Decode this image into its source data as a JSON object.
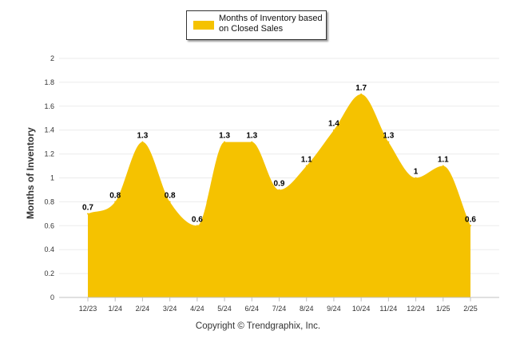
{
  "legend": {
    "label": "Months of Inventory based on Closed Sales"
  },
  "footer": {
    "copyright": "Copyright © Trendgraphix, Inc."
  },
  "chart_data": {
    "type": "area",
    "title": "",
    "xlabel": "",
    "ylabel": "Months of Inventory",
    "categories": [
      "12/23",
      "1/24",
      "2/24",
      "3/24",
      "4/24",
      "5/24",
      "6/24",
      "7/24",
      "8/24",
      "9/24",
      "10/24",
      "11/24",
      "12/24",
      "1/25",
      "2/25"
    ],
    "series": [
      {
        "name": "Months of Inventory based on Closed Sales",
        "values": [
          0.7,
          0.8,
          1.3,
          0.8,
          0.6,
          1.3,
          1.3,
          0.9,
          1.1,
          1.4,
          1.7,
          1.3,
          1.0,
          1.1,
          0.6
        ],
        "data_labels": [
          "0.7",
          "0.8",
          "1.3",
          "0.8",
          "0.6",
          "1.3",
          "1.3",
          "0.9",
          "1.1",
          "1.4",
          "1.7",
          "1.3",
          "1",
          "1.1",
          "0.6"
        ],
        "color": "#f5c200"
      }
    ],
    "y_ticks": [
      "0",
      "0.2",
      "0.4",
      "0.6",
      "0.8",
      "1",
      "1.2",
      "1.4",
      "1.6",
      "1.8",
      "2"
    ],
    "ylim": [
      0,
      2
    ],
    "grid": true,
    "legend_position": "top-center"
  }
}
